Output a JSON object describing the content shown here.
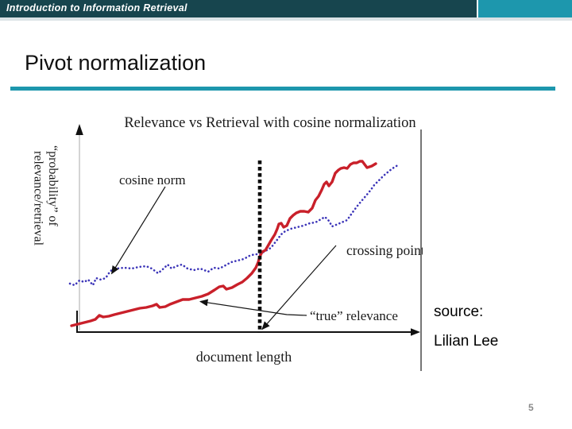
{
  "header": {
    "course_title": "Introduction to Information Retrieval"
  },
  "slide": {
    "title": "Pivot normalization",
    "page_number": "5"
  },
  "source_credit": {
    "line1": "source:",
    "line2": "Lilian Lee"
  },
  "colors": {
    "header_bar": "#17454e",
    "header_accent": "#1d97ad",
    "title_rule": "#1d97ad",
    "cosine_curve": "#3b34b8",
    "relevance_curve": "#c9202a"
  },
  "chart_data": {
    "type": "line",
    "title": "Relevance vs Retrieval with cosine normalization",
    "xlabel": "document length",
    "ylabel": "“probability” of relevance/retrieval",
    "ylabel_lines": [
      "“probability” of",
      "relevance/retrieval"
    ],
    "axes_numeric": false,
    "legend_position": "none",
    "note": "qualitative sketch; series points are figure-local pixel coords, y increases downward",
    "pivot_x": 297,
    "annotations": {
      "cosine_norm_label": "cosine norm",
      "crossing_point_label": "crossing point",
      "true_relevance_label": "“true” relevance"
    },
    "series": [
      {
        "name": "cosine norm",
        "slug": "cosine-norm-curve",
        "color": "#3b34b8",
        "width": 2.6,
        "dash": "0.1 4.6",
        "points": [
          [
            58,
            219
          ],
          [
            64,
            221
          ],
          [
            70,
            215
          ],
          [
            76,
            217
          ],
          [
            81,
            214
          ],
          [
            87,
            221
          ],
          [
            91,
            212
          ],
          [
            97,
            214
          ],
          [
            103,
            212
          ],
          [
            109,
            203
          ],
          [
            117,
            200
          ],
          [
            126,
            199
          ],
          [
            136,
            200
          ],
          [
            145,
            198
          ],
          [
            154,
            197
          ],
          [
            161,
            200
          ],
          [
            169,
            206
          ],
          [
            176,
            200
          ],
          [
            181,
            195
          ],
          [
            186,
            200
          ],
          [
            192,
            197
          ],
          [
            199,
            195
          ],
          [
            206,
            200
          ],
          [
            214,
            202
          ],
          [
            222,
            200
          ],
          [
            232,
            204
          ],
          [
            239,
            199
          ],
          [
            246,
            200
          ],
          [
            252,
            197
          ],
          [
            261,
            192
          ],
          [
            269,
            190
          ],
          [
            277,
            188
          ],
          [
            284,
            184
          ],
          [
            291,
            182
          ],
          [
            297,
            182
          ],
          [
            304,
            178
          ],
          [
            311,
            174
          ],
          [
            318,
            165
          ],
          [
            324,
            157
          ],
          [
            329,
            153
          ],
          [
            336,
            150
          ],
          [
            344,
            148
          ],
          [
            352,
            146
          ],
          [
            360,
            143
          ],
          [
            367,
            142
          ],
          [
            374,
            138
          ],
          [
            379,
            135
          ],
          [
            384,
            140
          ],
          [
            388,
            147
          ],
          [
            393,
            145
          ],
          [
            400,
            142
          ],
          [
            407,
            139
          ],
          [
            414,
            129
          ],
          [
            420,
            121
          ],
          [
            425,
            115
          ],
          [
            431,
            108
          ],
          [
            436,
            102
          ],
          [
            441,
            95
          ],
          [
            447,
            89
          ],
          [
            453,
            83
          ],
          [
            459,
            78
          ],
          [
            464,
            74
          ],
          [
            469,
            71
          ],
          [
            472,
            69
          ]
        ]
      },
      {
        "name": "“true” relevance",
        "slug": "true-relevance-curve",
        "color": "#c9202a",
        "width": 3.4,
        "dash": null,
        "points": [
          [
            60,
            272
          ],
          [
            68,
            270
          ],
          [
            76,
            268
          ],
          [
            84,
            266
          ],
          [
            90,
            264
          ],
          [
            95,
            259
          ],
          [
            100,
            261
          ],
          [
            107,
            260
          ],
          [
            114,
            258
          ],
          [
            122,
            256
          ],
          [
            130,
            254
          ],
          [
            138,
            252
          ],
          [
            146,
            250
          ],
          [
            154,
            249
          ],
          [
            162,
            247
          ],
          [
            167,
            245
          ],
          [
            171,
            249
          ],
          [
            178,
            248
          ],
          [
            184,
            245
          ],
          [
            192,
            242
          ],
          [
            200,
            239
          ],
          [
            208,
            239
          ],
          [
            216,
            237
          ],
          [
            224,
            235
          ],
          [
            232,
            232
          ],
          [
            240,
            227
          ],
          [
            246,
            223
          ],
          [
            251,
            222
          ],
          [
            255,
            226
          ],
          [
            262,
            224
          ],
          [
            269,
            220
          ],
          [
            275,
            217
          ],
          [
            281,
            212
          ],
          [
            287,
            206
          ],
          [
            292,
            199
          ],
          [
            295,
            192
          ],
          [
            297,
            185
          ],
          [
            300,
            179
          ],
          [
            304,
            177
          ],
          [
            307,
            172
          ],
          [
            311,
            165
          ],
          [
            316,
            157
          ],
          [
            319,
            150
          ],
          [
            321,
            144
          ],
          [
            324,
            143
          ],
          [
            327,
            148
          ],
          [
            331,
            146
          ],
          [
            335,
            137
          ],
          [
            339,
            133
          ],
          [
            343,
            130
          ],
          [
            348,
            128
          ],
          [
            353,
            128
          ],
          [
            358,
            129
          ],
          [
            363,
            124
          ],
          [
            367,
            114
          ],
          [
            371,
            109
          ],
          [
            375,
            101
          ],
          [
            378,
            94
          ],
          [
            381,
            91
          ],
          [
            384,
            96
          ],
          [
            388,
            91
          ],
          [
            392,
            80
          ],
          [
            396,
            76
          ],
          [
            399,
            74
          ],
          [
            403,
            73
          ],
          [
            407,
            74
          ],
          [
            411,
            69
          ],
          [
            415,
            67
          ],
          [
            419,
            67
          ],
          [
            423,
            65
          ],
          [
            426,
            65
          ],
          [
            429,
            69
          ],
          [
            432,
            73
          ],
          [
            435,
            72
          ],
          [
            438,
            71
          ],
          [
            443,
            68
          ]
        ]
      }
    ]
  }
}
